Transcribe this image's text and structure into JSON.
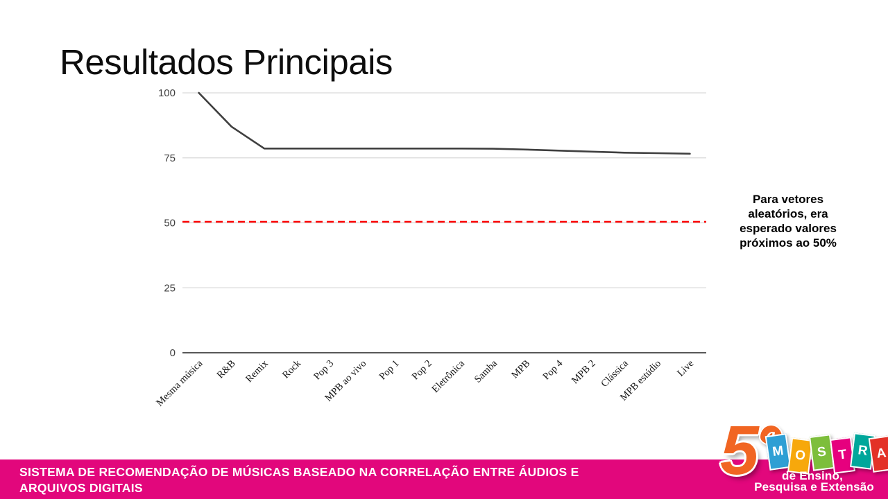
{
  "slide": {
    "title": "Resultados Principais"
  },
  "chart_data": {
    "type": "line",
    "title": "",
    "xlabel": "",
    "ylabel": "",
    "categories": [
      "Mesma música",
      "R&B",
      "Remix",
      "Rock",
      "Pop 3",
      "MPB ao vivo",
      "Pop 1",
      "Pop 2",
      "Eletrônica",
      "Samba",
      "MPB",
      "Pop 4",
      "MPB 2",
      "Clássica",
      "MPB estúdio",
      "Live"
    ],
    "values": [
      100,
      87,
      78.6,
      78.6,
      78.6,
      78.6,
      78.6,
      78.6,
      78.6,
      78.5,
      78.2,
      77.8,
      77.4,
      77.0,
      76.8,
      76.6
    ],
    "ylim": [
      0,
      100
    ],
    "y_ticks": [
      0,
      25,
      50,
      75,
      100
    ],
    "grid": true,
    "legend": false,
    "line_color": "#3f3f3f",
    "gridline_color": "#d9d9d9",
    "axis_color": "#404040",
    "reference_line": {
      "value": 50,
      "color": "#ff0000",
      "style": "dashed"
    }
  },
  "annotation": {
    "text": "Para vetores aleatórios, era esperado valores próximos ao 50%"
  },
  "footer": {
    "text": "SISTEMA DE RECOMENDAÇÃO DE MÚSICAS BASEADO NA CORRELAÇÃO ENTRE ÁUDIOS E\nARQUIVOS DIGITAIS",
    "bg_color": "#e2077c"
  },
  "logo": {
    "number": "5",
    "ordinal": "a",
    "word_letters": [
      {
        "char": "M",
        "color": "#2e9fd4"
      },
      {
        "char": "O",
        "color": "#f7a80b"
      },
      {
        "char": "S",
        "color": "#7dbe3b"
      },
      {
        "char": "T",
        "color": "#e6007e"
      },
      {
        "char": "R",
        "color": "#00a79b"
      },
      {
        "char": "A",
        "color": "#e33127"
      }
    ],
    "subtitle_line1": "de Ensino,",
    "subtitle_line2": "Pesquisa e Extensão"
  }
}
